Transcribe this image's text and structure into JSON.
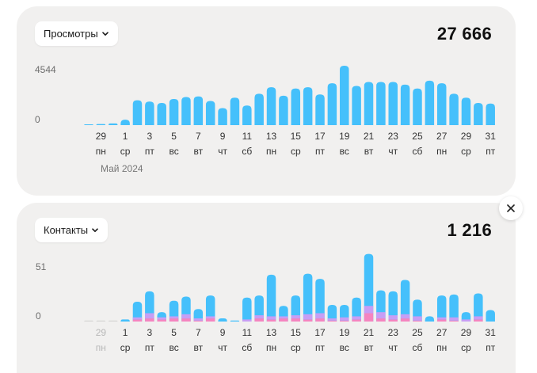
{
  "views_card": {
    "metric_label": "Просмотры",
    "total": "27 666",
    "y_max_label": "4544",
    "y_min_label": "0",
    "month_label": "Май 2024"
  },
  "contacts_card": {
    "metric_label": "Контакты",
    "total": "1 216",
    "y_max_label": "51",
    "y_min_label": "0"
  },
  "colors": {
    "bar": "#45c0fb",
    "bar_muted": "#d6d5d4",
    "segment_purple": "#c79ef5",
    "segment_pink": "#f585c0",
    "tick_text": "#333333",
    "tick_text_muted": "#b8b8b8"
  },
  "chart_data": [
    {
      "type": "bar",
      "title": "Просмотры",
      "ylim": [
        0,
        4544
      ],
      "x_tick_labels": [
        {
          "day": "29",
          "weekday": "пн"
        },
        {
          "day": "1",
          "weekday": "ср"
        },
        {
          "day": "3",
          "weekday": "пт"
        },
        {
          "day": "5",
          "weekday": "вс"
        },
        {
          "day": "7",
          "weekday": "вт"
        },
        {
          "day": "9",
          "weekday": "чт"
        },
        {
          "day": "11",
          "weekday": "сб"
        },
        {
          "day": "13",
          "weekday": "пн"
        },
        {
          "day": "15",
          "weekday": "ср"
        },
        {
          "day": "17",
          "weekday": "пт"
        },
        {
          "day": "19",
          "weekday": "вс"
        },
        {
          "day": "21",
          "weekday": "вт"
        },
        {
          "day": "23",
          "weekday": "чт"
        },
        {
          "day": "25",
          "weekday": "сб"
        },
        {
          "day": "27",
          "weekday": "пн"
        },
        {
          "day": "29",
          "weekday": "ср"
        },
        {
          "day": "31",
          "weekday": "пт"
        }
      ],
      "values": [
        60,
        80,
        130,
        420,
        1900,
        1800,
        1700,
        2000,
        2150,
        2200,
        1850,
        1300,
        2100,
        1500,
        2400,
        2900,
        2250,
        2800,
        2900,
        2350,
        3200,
        4544,
        3000,
        3300,
        3300,
        3300,
        3100,
        2800,
        3400,
        3200,
        2400,
        2100,
        1700,
        1650
      ],
      "muted": [
        false,
        false,
        false,
        false,
        false,
        false,
        false,
        false,
        false,
        false,
        false,
        false,
        false,
        false,
        false,
        false,
        false,
        false,
        false,
        false,
        false,
        false,
        false,
        false,
        false,
        false,
        false,
        false,
        false,
        false,
        false,
        false,
        false,
        false
      ]
    },
    {
      "type": "bar",
      "title": "Контакты",
      "ylim": [
        0,
        51
      ],
      "x_tick_labels": [
        {
          "day": "29",
          "weekday": "пн",
          "muted": true
        },
        {
          "day": "1",
          "weekday": "ср"
        },
        {
          "day": "3",
          "weekday": "пт"
        },
        {
          "day": "5",
          "weekday": "вс"
        },
        {
          "day": "7",
          "weekday": "вт"
        },
        {
          "day": "9",
          "weekday": "чт"
        },
        {
          "day": "11",
          "weekday": "сб"
        },
        {
          "day": "13",
          "weekday": "пн"
        },
        {
          "day": "15",
          "weekday": "ср"
        },
        {
          "day": "17",
          "weekday": "пт"
        },
        {
          "day": "19",
          "weekday": "вс"
        },
        {
          "day": "21",
          "weekday": "вт"
        },
        {
          "day": "23",
          "weekday": "чт"
        },
        {
          "day": "25",
          "weekday": "сб"
        },
        {
          "day": "27",
          "weekday": "пн"
        },
        {
          "day": "29",
          "weekday": "ср"
        },
        {
          "day": "31",
          "weekday": "пт"
        }
      ],
      "series": [
        {
          "values": [
            0,
            0,
            0,
            2,
            15,
            21,
            5,
            15,
            17,
            9,
            20,
            3,
            0,
            21,
            19,
            40,
            10,
            19,
            39,
            33,
            13,
            12,
            18,
            50,
            21,
            23,
            33,
            16,
            5,
            21,
            22,
            7,
            22,
            11
          ]
        },
        {
          "values": [
            0,
            0,
            0,
            0,
            2,
            5,
            2,
            2,
            4,
            2,
            2,
            0,
            0,
            2,
            3,
            3,
            2,
            3,
            5,
            5,
            2,
            3,
            3,
            7,
            6,
            4,
            4,
            4,
            0,
            2,
            3,
            2,
            3,
            0
          ]
        },
        {
          "values": [
            0,
            0,
            0,
            0,
            2,
            3,
            2,
            3,
            3,
            1,
            3,
            0,
            0,
            0,
            3,
            2,
            3,
            3,
            2,
            3,
            1,
            1,
            2,
            8,
            3,
            2,
            3,
            1,
            0,
            2,
            1,
            0,
            2,
            0
          ]
        }
      ],
      "muted": [
        true,
        true,
        true,
        false,
        false,
        false,
        false,
        false,
        false,
        false,
        false,
        false,
        false,
        false,
        false,
        false,
        false,
        false,
        false,
        false,
        false,
        false,
        false,
        false,
        false,
        false,
        false,
        false,
        false,
        false,
        false,
        false,
        false,
        false
      ]
    }
  ]
}
